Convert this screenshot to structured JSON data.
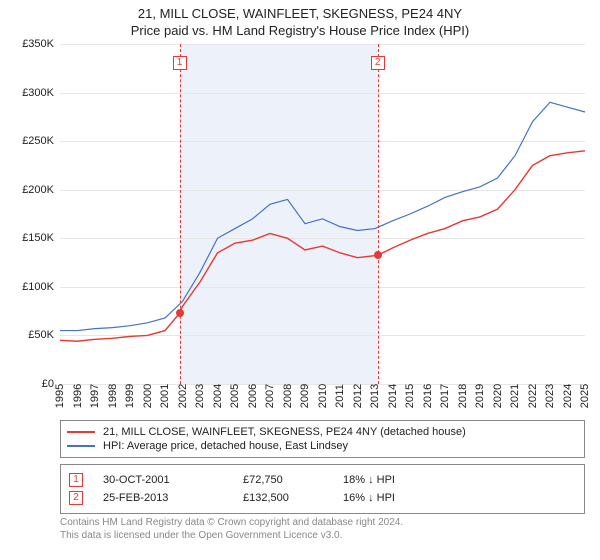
{
  "title": "21, MILL CLOSE, WAINFLEET, SKEGNESS, PE24 4NY",
  "subtitle": "Price paid vs. HM Land Registry's House Price Index (HPI)",
  "chart": {
    "type": "line",
    "background_color": "#ffffff",
    "grid_color": "#e6e6e6",
    "ylim": [
      0,
      350000
    ],
    "ytick_step": 50000,
    "ytick_labels": [
      "£0",
      "£50K",
      "£100K",
      "£150K",
      "£200K",
      "£250K",
      "£300K",
      "£350K"
    ],
    "x_years": [
      1995,
      1996,
      1997,
      1998,
      1999,
      2000,
      2001,
      2002,
      2003,
      2004,
      2005,
      2006,
      2007,
      2008,
      2009,
      2010,
      2011,
      2012,
      2013,
      2014,
      2015,
      2016,
      2017,
      2018,
      2019,
      2020,
      2021,
      2022,
      2023,
      2024,
      2025
    ],
    "shade_from_year": 2001.83,
    "shade_to_year": 2013.15,
    "shade_color": "#edf1f9",
    "series": [
      {
        "name": "21, MILL CLOSE, WAINFLEET, SKEGNESS, PE24 4NY (detached house)",
        "color": "#e53935",
        "line_width": 1.4,
        "points": [
          [
            1995,
            45000
          ],
          [
            1996,
            44000
          ],
          [
            1997,
            46000
          ],
          [
            1998,
            47000
          ],
          [
            1999,
            49000
          ],
          [
            2000,
            50000
          ],
          [
            2001,
            55000
          ],
          [
            2001.83,
            72750
          ],
          [
            2002,
            80000
          ],
          [
            2003,
            105000
          ],
          [
            2004,
            135000
          ],
          [
            2005,
            145000
          ],
          [
            2006,
            148000
          ],
          [
            2007,
            155000
          ],
          [
            2008,
            150000
          ],
          [
            2009,
            138000
          ],
          [
            2010,
            142000
          ],
          [
            2011,
            135000
          ],
          [
            2012,
            130000
          ],
          [
            2013.15,
            132500
          ],
          [
            2014,
            140000
          ],
          [
            2015,
            148000
          ],
          [
            2016,
            155000
          ],
          [
            2017,
            160000
          ],
          [
            2018,
            168000
          ],
          [
            2019,
            172000
          ],
          [
            2020,
            180000
          ],
          [
            2021,
            200000
          ],
          [
            2022,
            225000
          ],
          [
            2023,
            235000
          ],
          [
            2024,
            238000
          ],
          [
            2025,
            240000
          ]
        ]
      },
      {
        "name": "HPI: Average price, detached house, East Lindsey",
        "color": "#4472c4",
        "line_width": 1.2,
        "points": [
          [
            1995,
            55000
          ],
          [
            1996,
            55000
          ],
          [
            1997,
            57000
          ],
          [
            1998,
            58000
          ],
          [
            1999,
            60000
          ],
          [
            2000,
            63000
          ],
          [
            2001,
            68000
          ],
          [
            2002,
            85000
          ],
          [
            2003,
            115000
          ],
          [
            2004,
            150000
          ],
          [
            2005,
            160000
          ],
          [
            2006,
            170000
          ],
          [
            2007,
            185000
          ],
          [
            2008,
            190000
          ],
          [
            2009,
            165000
          ],
          [
            2010,
            170000
          ],
          [
            2011,
            162000
          ],
          [
            2012,
            158000
          ],
          [
            2013,
            160000
          ],
          [
            2014,
            168000
          ],
          [
            2015,
            175000
          ],
          [
            2016,
            183000
          ],
          [
            2017,
            192000
          ],
          [
            2018,
            198000
          ],
          [
            2019,
            203000
          ],
          [
            2020,
            212000
          ],
          [
            2021,
            235000
          ],
          [
            2022,
            270000
          ],
          [
            2023,
            290000
          ],
          [
            2024,
            285000
          ],
          [
            2025,
            280000
          ]
        ]
      }
    ],
    "markers": [
      {
        "n": "1",
        "year": 2001.83,
        "line_color": "#e53935"
      },
      {
        "n": "2",
        "year": 2013.15,
        "line_color": "#e53935"
      }
    ],
    "sale_dots": [
      {
        "year": 2001.83,
        "value": 72750
      },
      {
        "year": 2013.15,
        "value": 132500
      }
    ]
  },
  "legend": [
    {
      "label": "21, MILL CLOSE, WAINFLEET, SKEGNESS, PE24 4NY (detached house)",
      "color": "#e53935"
    },
    {
      "label": "HPI: Average price, detached house, East Lindsey",
      "color": "#4472c4"
    }
  ],
  "sales": [
    {
      "n": "1",
      "date": "30-OCT-2001",
      "price": "£72,750",
      "delta": "18% ↓ HPI"
    },
    {
      "n": "2",
      "date": "25-FEB-2013",
      "price": "£132,500",
      "delta": "16% ↓ HPI"
    }
  ],
  "footer": {
    "line1": "Contains HM Land Registry data © Crown copyright and database right 2024.",
    "line2": "This data is licensed under the Open Government Licence v3.0."
  }
}
